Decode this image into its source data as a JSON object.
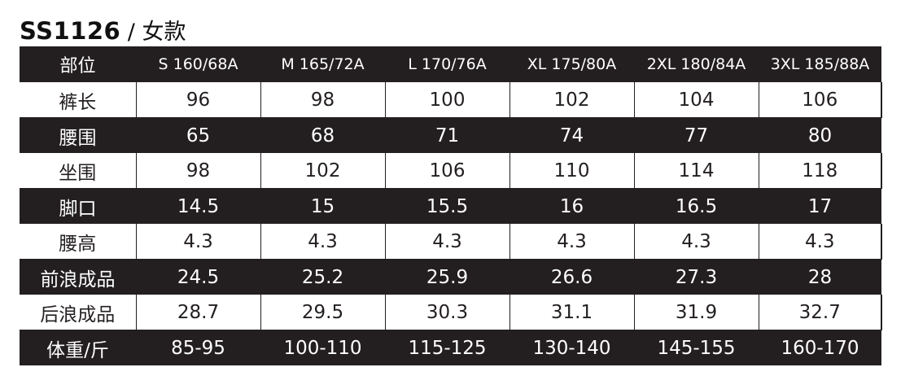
{
  "title": {
    "code": "SS1126",
    "subtitle": " / 女款"
  },
  "table": {
    "header_label": "部位",
    "sizes": [
      "S  160/68A",
      "M  165/72A",
      "L 170/76A",
      "XL  175/80A",
      "2XL  180/84A",
      "3XL  185/88A"
    ],
    "rows": [
      {
        "label": "裤长",
        "values": [
          "96",
          "98",
          "100",
          "102",
          "104",
          "106"
        ],
        "style": "light"
      },
      {
        "label": "腰围",
        "values": [
          "65",
          "68",
          "71",
          "74",
          "77",
          "80"
        ],
        "style": "dark"
      },
      {
        "label": "坐围",
        "values": [
          "98",
          "102",
          "106",
          "110",
          "114",
          "118"
        ],
        "style": "light"
      },
      {
        "label": "脚口",
        "values": [
          "14.5",
          "15",
          "15.5",
          "16",
          "16.5",
          "17"
        ],
        "style": "dark"
      },
      {
        "label": "腰高",
        "values": [
          "4.3",
          "4.3",
          "4.3",
          "4.3",
          "4.3",
          "4.3"
        ],
        "style": "light"
      },
      {
        "label": "前浪成品",
        "values": [
          "24.5",
          "25.2",
          "25.9",
          "26.6",
          "27.3",
          "28"
        ],
        "style": "dark"
      },
      {
        "label": "后浪成品",
        "values": [
          "28.7",
          "29.5",
          "30.3",
          "31.1",
          "31.9",
          "32.7"
        ],
        "style": "light"
      },
      {
        "label": "体重/斤",
        "values": [
          "85-95",
          "100-110",
          "115-125",
          "130-140",
          "145-155",
          "160-170"
        ],
        "style": "dark"
      }
    ]
  }
}
